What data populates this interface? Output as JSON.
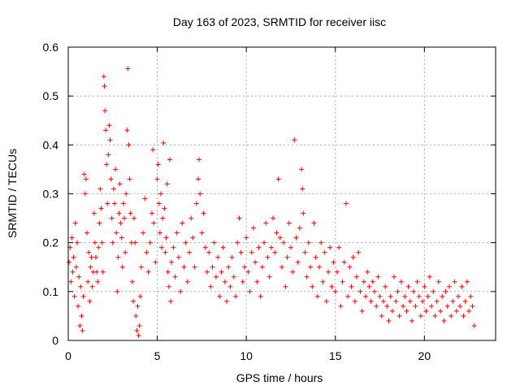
{
  "chart_data": {
    "type": "scatter",
    "title": "Day 163 of 2023, SRMTID for receiver iisc",
    "xlabel": "GPS time / hours",
    "ylabel": "SRMTID / TECUs",
    "xlim": [
      0,
      24
    ],
    "ylim": [
      0,
      0.6
    ],
    "x_ticks": [
      0,
      5,
      10,
      15,
      20
    ],
    "x_tick_labels": [
      "0",
      "5",
      "10",
      "15",
      "20"
    ],
    "y_ticks": [
      0,
      0.1,
      0.2,
      0.3,
      0.4,
      0.5,
      0.6
    ],
    "y_tick_labels": [
      "0",
      "0.1",
      "0.2",
      "0.3",
      "0.4",
      "0.5",
      "0.6"
    ],
    "grid": true,
    "marker": "+",
    "color": "#ff0000",
    "series": [
      {
        "name": "SRMTID",
        "points": [
          [
            0.05,
            0.16
          ],
          [
            0.1,
            0.19
          ],
          [
            0.15,
            0.12
          ],
          [
            0.2,
            0.21
          ],
          [
            0.25,
            0.14
          ],
          [
            0.3,
            0.17
          ],
          [
            0.35,
            0.09
          ],
          [
            0.4,
            0.24
          ],
          [
            0.45,
            0.15
          ],
          [
            0.5,
            0.2
          ],
          [
            0.55,
            0.07
          ],
          [
            0.6,
            0.13
          ],
          [
            0.65,
            0.03
          ],
          [
            0.7,
            0.11
          ],
          [
            0.75,
            0.05
          ],
          [
            0.8,
            0.02
          ],
          [
            0.85,
            0.09
          ],
          [
            0.9,
            0.34
          ],
          [
            0.95,
            0.3
          ],
          [
            1.0,
            0.33
          ],
          [
            1.05,
            0.22
          ],
          [
            1.1,
            0.12
          ],
          [
            1.15,
            0.18
          ],
          [
            1.2,
            0.08
          ],
          [
            1.25,
            0.15
          ],
          [
            1.3,
            0.17
          ],
          [
            1.35,
            0.11
          ],
          [
            1.4,
            0.14
          ],
          [
            1.45,
            0.26
          ],
          [
            1.5,
            0.2
          ],
          [
            1.55,
            0.17
          ],
          [
            1.6,
            0.14
          ],
          [
            1.65,
            0.12
          ],
          [
            1.7,
            0.19
          ],
          [
            1.75,
            0.24
          ],
          [
            1.8,
            0.31
          ],
          [
            1.85,
            0.27
          ],
          [
            1.9,
            0.2
          ],
          [
            1.95,
            0.14
          ],
          [
            2.0,
            0.54
          ],
          [
            2.03,
            0.52
          ],
          [
            2.06,
            0.47
          ],
          [
            2.1,
            0.43
          ],
          [
            2.15,
            0.36
          ],
          [
            2.2,
            0.28
          ],
          [
            2.25,
            0.38
          ],
          [
            2.3,
            0.44
          ],
          [
            2.35,
            0.41
          ],
          [
            2.4,
            0.33
          ],
          [
            2.45,
            0.25
          ],
          [
            2.5,
            0.2
          ],
          [
            2.55,
            0.31
          ],
          [
            2.6,
            0.28
          ],
          [
            2.65,
            0.35
          ],
          [
            2.7,
            0.22
          ],
          [
            2.75,
            0.1
          ],
          [
            2.8,
            0.17
          ],
          [
            2.85,
            0.26
          ],
          [
            2.9,
            0.32
          ],
          [
            2.95,
            0.24
          ],
          [
            3.0,
            0.21
          ],
          [
            3.05,
            0.15
          ],
          [
            3.1,
            0.28
          ],
          [
            3.15,
            0.25
          ],
          [
            3.2,
            0.18
          ],
          [
            3.25,
            0.3
          ],
          [
            3.3,
            0.43
          ],
          [
            3.35,
            0.556
          ],
          [
            3.4,
            0.4
          ],
          [
            3.45,
            0.33
          ],
          [
            3.5,
            0.26
          ],
          [
            3.55,
            0.2
          ],
          [
            3.6,
            0.12
          ],
          [
            3.65,
            0.08
          ],
          [
            3.7,
            0.25
          ],
          [
            3.75,
            0.2
          ],
          [
            3.8,
            0.05
          ],
          [
            3.85,
            0.02
          ],
          [
            3.9,
            0.07
          ],
          [
            3.95,
            0.01
          ],
          [
            4.0,
            0.03
          ],
          [
            4.05,
            0.09
          ],
          [
            4.1,
            0.15
          ],
          [
            4.2,
            0.22
          ],
          [
            4.3,
            0.29
          ],
          [
            4.4,
            0.18
          ],
          [
            4.5,
            0.14
          ],
          [
            4.6,
            0.2
          ],
          [
            4.7,
            0.26
          ],
          [
            4.75,
            0.39
          ],
          [
            4.8,
            0.24
          ],
          [
            4.9,
            0.16
          ],
          [
            5.0,
            0.33
          ],
          [
            5.05,
            0.36
          ],
          [
            5.1,
            0.28
          ],
          [
            5.15,
            0.22
          ],
          [
            5.2,
            0.3
          ],
          [
            5.25,
            0.19
          ],
          [
            5.3,
            0.25
          ],
          [
            5.35,
            0.404
          ],
          [
            5.4,
            0.27
          ],
          [
            5.45,
            0.18
          ],
          [
            5.5,
            0.21
          ],
          [
            5.55,
            0.32
          ],
          [
            5.6,
            0.14
          ],
          [
            5.65,
            0.11
          ],
          [
            5.7,
            0.37
          ],
          [
            5.75,
            0.08
          ],
          [
            5.8,
            0.16
          ],
          [
            5.9,
            0.19
          ],
          [
            6.0,
            0.13
          ],
          [
            6.1,
            0.22
          ],
          [
            6.2,
            0.17
          ],
          [
            6.3,
            0.1
          ],
          [
            6.4,
            0.24
          ],
          [
            6.5,
            0.15
          ],
          [
            6.6,
            0.2
          ],
          [
            6.7,
            0.12
          ],
          [
            6.8,
            0.18
          ],
          [
            6.9,
            0.25
          ],
          [
            7.0,
            0.21
          ],
          [
            7.1,
            0.15
          ],
          [
            7.2,
            0.28
          ],
          [
            7.3,
            0.33
          ],
          [
            7.35,
            0.37
          ],
          [
            7.4,
            0.3
          ],
          [
            7.5,
            0.22
          ],
          [
            7.6,
            0.26
          ],
          [
            7.7,
            0.19
          ],
          [
            7.8,
            0.14
          ],
          [
            7.9,
            0.18
          ],
          [
            8.0,
            0.11
          ],
          [
            8.1,
            0.15
          ],
          [
            8.2,
            0.2
          ],
          [
            8.3,
            0.13
          ],
          [
            8.4,
            0.17
          ],
          [
            8.5,
            0.09
          ],
          [
            8.6,
            0.14
          ],
          [
            8.7,
            0.19
          ],
          [
            8.8,
            0.12
          ],
          [
            8.9,
            0.08
          ],
          [
            9.0,
            0.15
          ],
          [
            9.1,
            0.11
          ],
          [
            9.2,
            0.17
          ],
          [
            9.3,
            0.13
          ],
          [
            9.4,
            0.09
          ],
          [
            9.5,
            0.2
          ],
          [
            9.6,
            0.25
          ],
          [
            9.7,
            0.18
          ],
          [
            9.8,
            0.12
          ],
          [
            9.9,
            0.15
          ],
          [
            10.0,
            0.21
          ],
          [
            10.1,
            0.14
          ],
          [
            10.2,
            0.1
          ],
          [
            10.3,
            0.18
          ],
          [
            10.4,
            0.23
          ],
          [
            10.5,
            0.16
          ],
          [
            10.6,
            0.12
          ],
          [
            10.7,
            0.19
          ],
          [
            10.8,
            0.09
          ],
          [
            10.9,
            0.15
          ],
          [
            11.0,
            0.2
          ],
          [
            11.1,
            0.24
          ],
          [
            11.2,
            0.17
          ],
          [
            11.3,
            0.13
          ],
          [
            11.4,
            0.19
          ],
          [
            11.5,
            0.25
          ],
          [
            11.6,
            0.18
          ],
          [
            11.7,
            0.22
          ],
          [
            11.8,
            0.33
          ],
          [
            11.9,
            0.21
          ],
          [
            12.0,
            0.15
          ],
          [
            12.1,
            0.2
          ],
          [
            12.2,
            0.11
          ],
          [
            12.3,
            0.17
          ],
          [
            12.4,
            0.24
          ],
          [
            12.5,
            0.19
          ],
          [
            12.6,
            0.14
          ],
          [
            12.7,
            0.41
          ],
          [
            12.8,
            0.21
          ],
          [
            12.9,
            0.16
          ],
          [
            13.0,
            0.23
          ],
          [
            13.1,
            0.35
          ],
          [
            13.15,
            0.31
          ],
          [
            13.2,
            0.26
          ],
          [
            13.3,
            0.18
          ],
          [
            13.4,
            0.13
          ],
          [
            13.5,
            0.2
          ],
          [
            13.6,
            0.15
          ],
          [
            13.7,
            0.11
          ],
          [
            13.8,
            0.24
          ],
          [
            13.9,
            0.17
          ],
          [
            14.0,
            0.09
          ],
          [
            14.1,
            0.15
          ],
          [
            14.2,
            0.2
          ],
          [
            14.3,
            0.12
          ],
          [
            14.4,
            0.18
          ],
          [
            14.5,
            0.08
          ],
          [
            14.6,
            0.14
          ],
          [
            14.7,
            0.19
          ],
          [
            14.8,
            0.11
          ],
          [
            14.9,
            0.16
          ],
          [
            15.0,
            0.1
          ],
          [
            15.1,
            0.14
          ],
          [
            15.2,
            0.19
          ],
          [
            15.3,
            0.07
          ],
          [
            15.4,
            0.12
          ],
          [
            15.5,
            0.16
          ],
          [
            15.6,
            0.28
          ],
          [
            15.7,
            0.09
          ],
          [
            15.8,
            0.15
          ],
          [
            15.9,
            0.11
          ],
          [
            16.0,
            0.17
          ],
          [
            16.1,
            0.08
          ],
          [
            16.2,
            0.13
          ],
          [
            16.3,
            0.18
          ],
          [
            16.4,
            0.1
          ],
          [
            16.5,
            0.06
          ],
          [
            16.6,
            0.12
          ],
          [
            16.7,
            0.09
          ],
          [
            16.8,
            0.14
          ],
          [
            16.9,
            0.11
          ],
          [
            17.0,
            0.08
          ],
          [
            17.1,
            0.12
          ],
          [
            17.2,
            0.1
          ],
          [
            17.3,
            0.07
          ],
          [
            17.4,
            0.13
          ],
          [
            17.5,
            0.09
          ],
          [
            17.6,
            0.05
          ],
          [
            17.7,
            0.08
          ],
          [
            17.8,
            0.11
          ],
          [
            17.9,
            0.07
          ],
          [
            18.0,
            0.04
          ],
          [
            18.1,
            0.09
          ],
          [
            18.2,
            0.06
          ],
          [
            18.3,
            0.13
          ],
          [
            18.4,
            0.08
          ],
          [
            18.5,
            0.1
          ],
          [
            18.6,
            0.05
          ],
          [
            18.7,
            0.12
          ],
          [
            18.8,
            0.07
          ],
          [
            18.9,
            0.09
          ],
          [
            19.0,
            0.06
          ],
          [
            19.1,
            0.11
          ],
          [
            19.2,
            0.08
          ],
          [
            19.3,
            0.04
          ],
          [
            19.4,
            0.1
          ],
          [
            19.5,
            0.07
          ],
          [
            19.6,
            0.12
          ],
          [
            19.7,
            0.09
          ],
          [
            19.8,
            0.05
          ],
          [
            19.9,
            0.08
          ],
          [
            20.0,
            0.11
          ],
          [
            20.1,
            0.06
          ],
          [
            20.2,
            0.09
          ],
          [
            20.3,
            0.13
          ],
          [
            20.4,
            0.07
          ],
          [
            20.5,
            0.1
          ],
          [
            20.6,
            0.05
          ],
          [
            20.7,
            0.08
          ],
          [
            20.8,
            0.12
          ],
          [
            20.9,
            0.06
          ],
          [
            21.0,
            0.09
          ],
          [
            21.1,
            0.04
          ],
          [
            21.2,
            0.1
          ],
          [
            21.3,
            0.07
          ],
          [
            21.4,
            0.11
          ],
          [
            21.5,
            0.05
          ],
          [
            21.6,
            0.08
          ],
          [
            21.7,
            0.12
          ],
          [
            21.8,
            0.06
          ],
          [
            21.9,
            0.09
          ],
          [
            22.0,
            0.07
          ],
          [
            22.1,
            0.11
          ],
          [
            22.2,
            0.05
          ],
          [
            22.3,
            0.08
          ],
          [
            22.4,
            0.12
          ],
          [
            22.5,
            0.06
          ],
          [
            22.6,
            0.09
          ],
          [
            22.7,
            0.07
          ],
          [
            22.8,
            0.03
          ]
        ]
      }
    ]
  }
}
